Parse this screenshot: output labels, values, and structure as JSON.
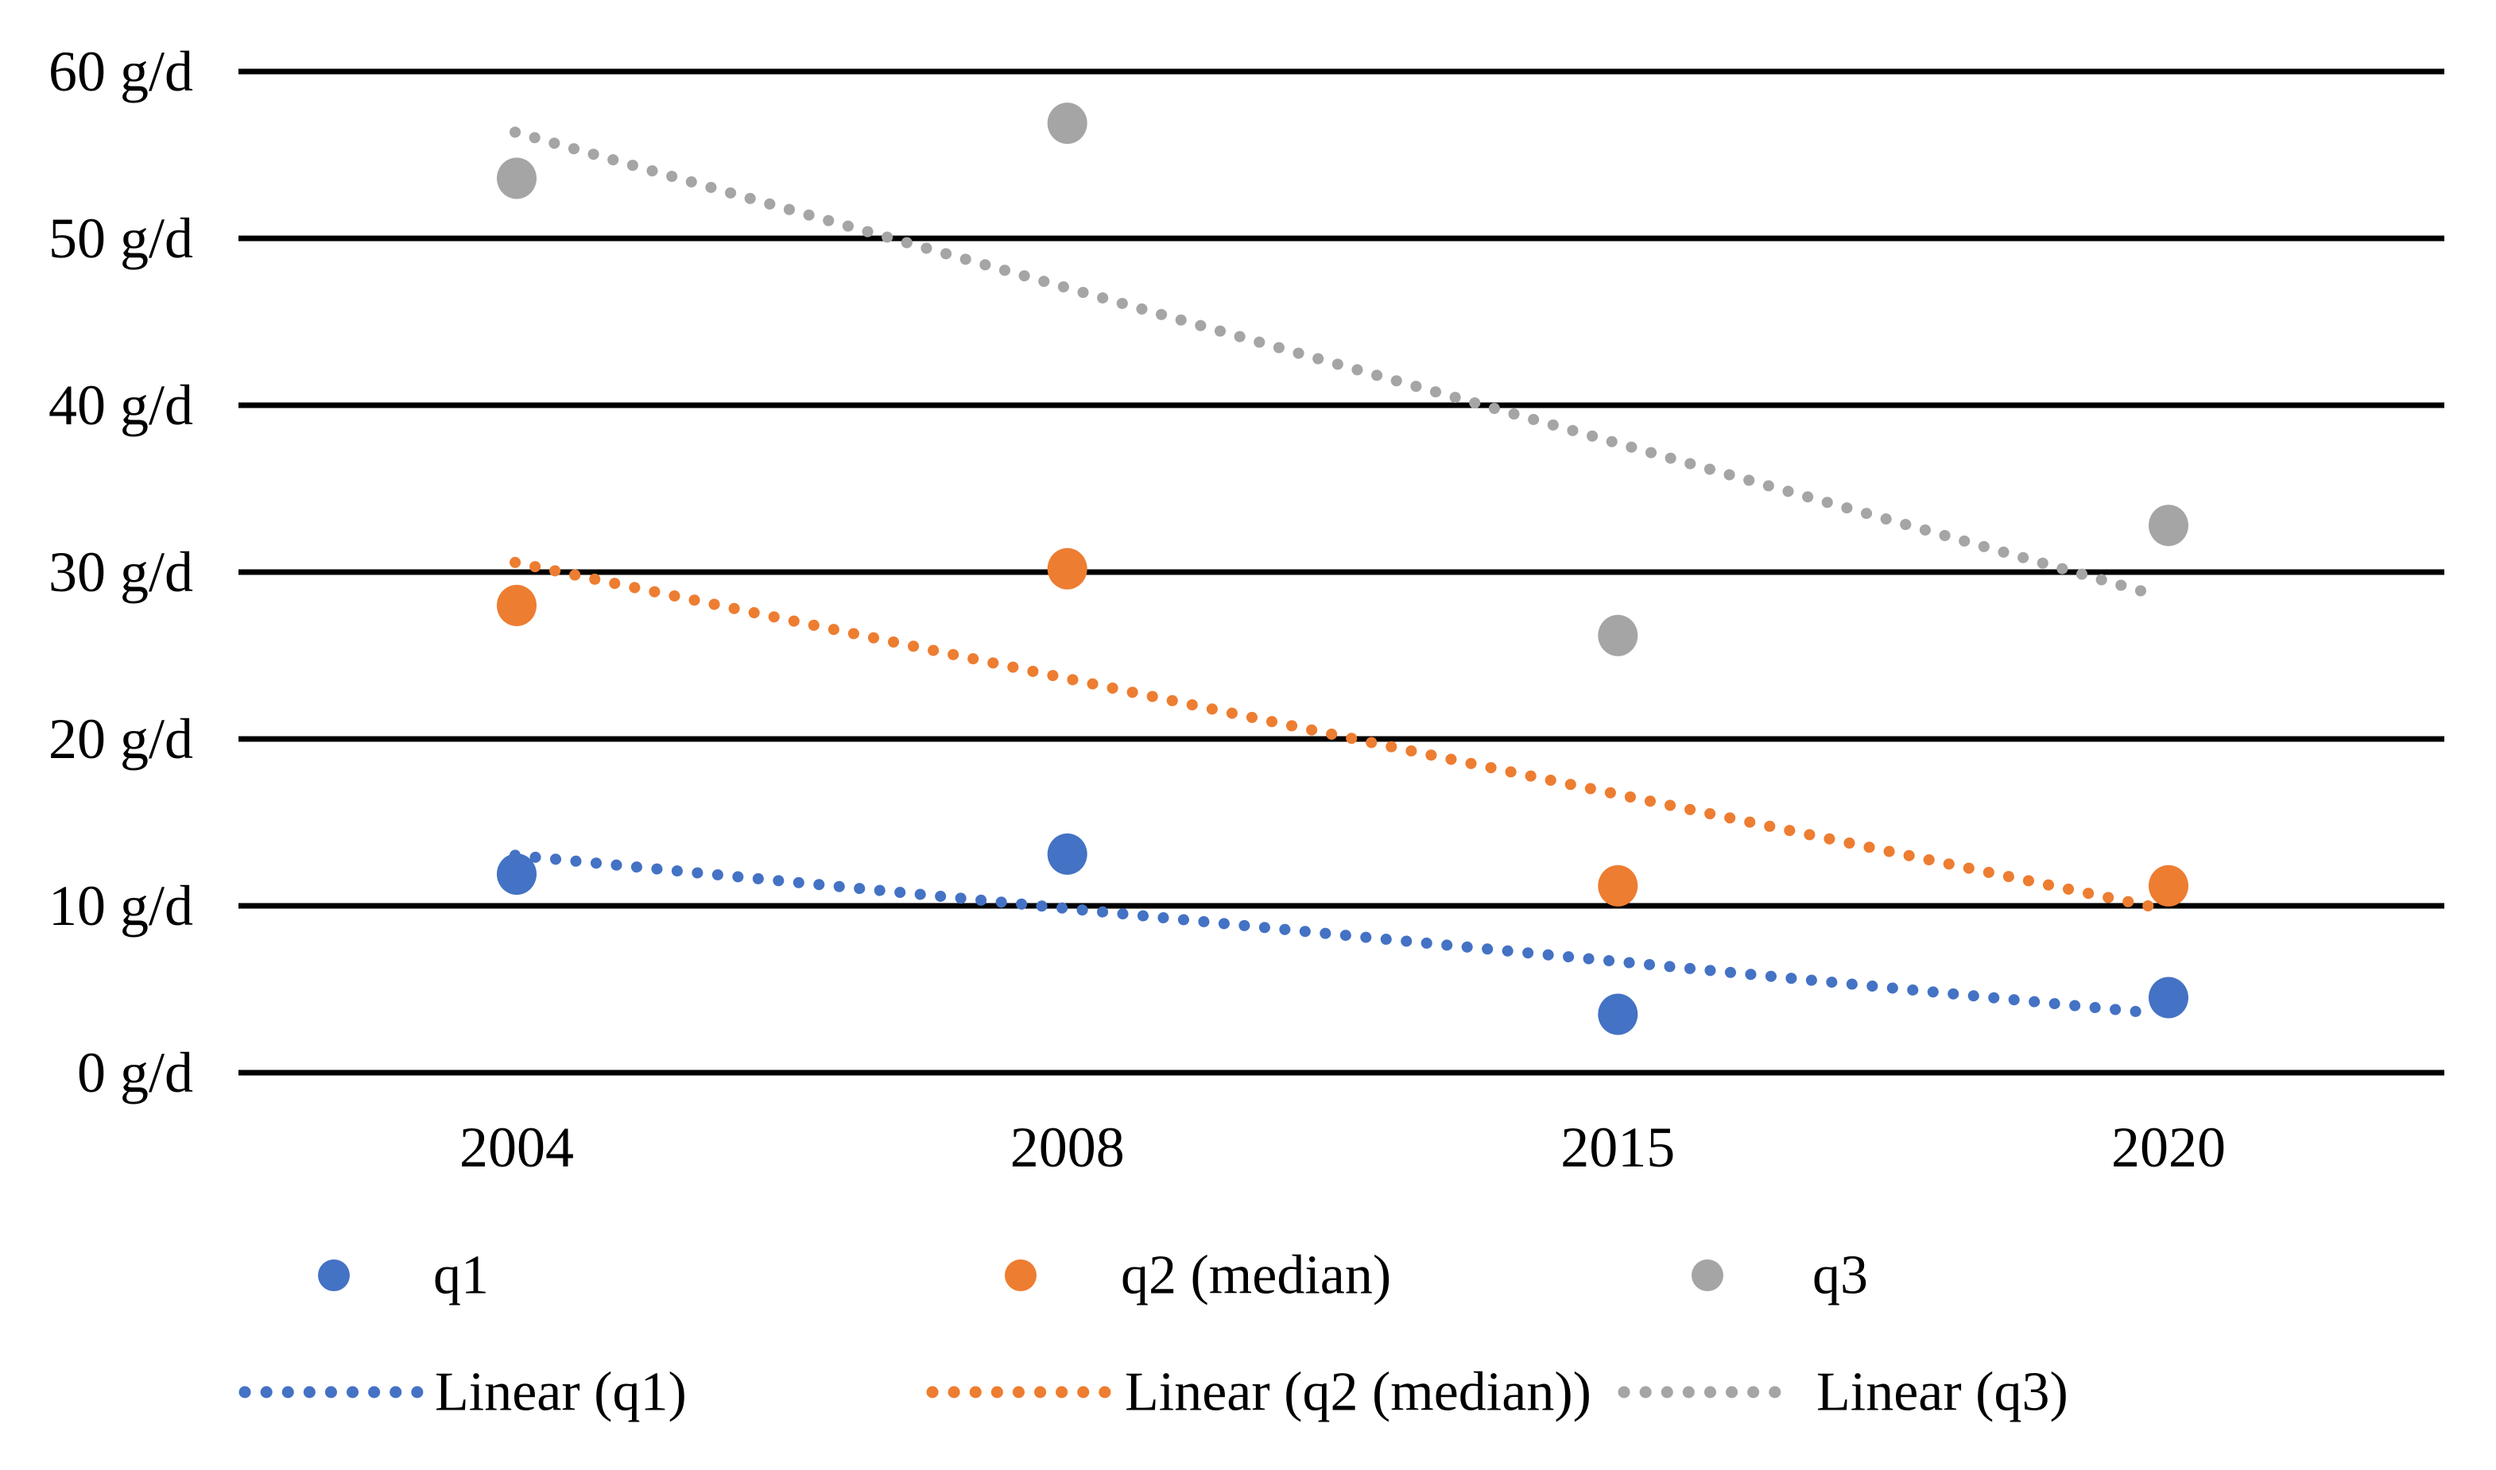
{
  "figure": {
    "background": "#ffffff",
    "text_color": "#000000"
  },
  "chart_data": {
    "type": "scatter",
    "title": "",
    "x_categories": [
      "2004",
      "2008",
      "2015",
      "2020"
    ],
    "y_axis": {
      "unit": "g/d",
      "min": 0,
      "max": 60,
      "step": 10,
      "tick_labels": [
        "0 g/d",
        "10 g/d",
        "20 g/d",
        "30 g/d",
        "40 g/d",
        "50 g/d",
        "60 g/d"
      ]
    },
    "grid": {
      "horizontal": true,
      "color": "#000000"
    },
    "series": [
      {
        "name": "q1",
        "color": "#4472C4",
        "marker": "circle",
        "values": [
          11.9,
          13.1,
          3.5,
          4.5
        ]
      },
      {
        "name": "q2 (median)",
        "color": "#ED7D31",
        "marker": "circle",
        "values": [
          28.0,
          30.2,
          11.2,
          11.2
        ]
      },
      {
        "name": "q3",
        "color": "#A5A5A5",
        "marker": "circle",
        "values": [
          53.6,
          56.9,
          26.2,
          32.8
        ]
      }
    ],
    "trendlines": [
      {
        "name": "Linear (q1)",
        "series_index": 0,
        "color": "#4472C4",
        "style": "dotted"
      },
      {
        "name": "Linear (q2 (median))",
        "series_index": 1,
        "color": "#ED7D31",
        "style": "dotted"
      },
      {
        "name": "Linear (q3)",
        "series_index": 2,
        "color": "#A5A5A5",
        "style": "dotted"
      }
    ],
    "legend_position": "bottom"
  }
}
